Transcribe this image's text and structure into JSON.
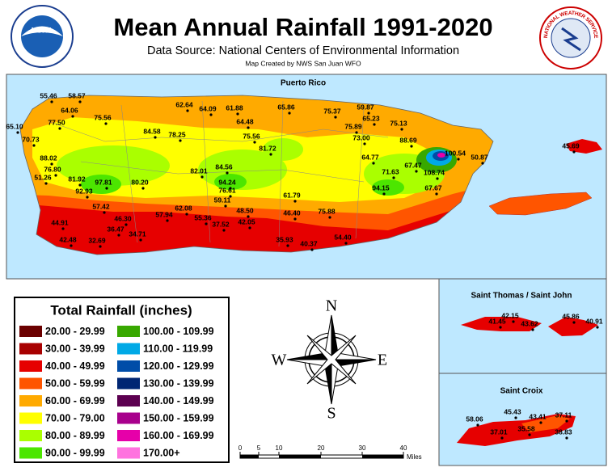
{
  "header": {
    "title": "Mean Annual Rainfall 1991-2020",
    "subtitle": "Data Source: National Centers of Environmental Information",
    "credit": "Map Created by NWS San Juan WFO"
  },
  "logos": {
    "left": "NOAA",
    "right": "NATIONAL WEATHER SERVICE"
  },
  "map": {
    "labels": {
      "puerto_rico": "Puerto Rico",
      "st_thomas": "Saint Thomas / Saint John",
      "st_croix": "Saint Croix"
    },
    "stations": {
      "puerto_rico": [
        "55.46",
        "58.57",
        "64.06",
        "75.56",
        "62.64",
        "64.09",
        "61.88",
        "65.86",
        "75.37",
        "59.87",
        "65.23",
        "65.10",
        "77.50",
        "64.48",
        "75.56",
        "84.58",
        "78.25",
        "75.89",
        "75.13",
        "73.00",
        "88.69",
        "70.73",
        "81.72",
        "88.02",
        "76.80",
        "82.01",
        "84.56",
        "64.77",
        "67.47",
        "100.54",
        "50.87",
        "71.63",
        "108.74",
        "51.26",
        "81.92",
        "97.81",
        "80.20",
        "94.24",
        "76.61",
        "92.93",
        "94.15",
        "67.67",
        "61.79",
        "59.11",
        "57.42",
        "62.08",
        "57.94",
        "48.50",
        "46.40",
        "75.88",
        "55.36",
        "46.30",
        "44.91",
        "37.52",
        "42.05",
        "36.47",
        "34.71",
        "42.48",
        "32.69",
        "35.93",
        "40.37",
        "54.40",
        "45.69"
      ],
      "st_thomas": [
        "41.45",
        "42.15",
        "43.62",
        "45.86",
        "40.91"
      ],
      "st_croix": [
        "45.43",
        "43.41",
        "37.11",
        "58.06",
        "37.01",
        "35.58",
        "38.83"
      ]
    }
  },
  "legend": {
    "title": "Total Rainfall (inches)",
    "items": [
      {
        "label": "20.00 - 29.99",
        "color": "#6b0000"
      },
      {
        "label": "30.00 - 39.99",
        "color": "#a80000"
      },
      {
        "label": "40.00 - 49.99",
        "color": "#e60000"
      },
      {
        "label": "50.00 - 59.99",
        "color": "#ff5500"
      },
      {
        "label": "60.00 - 69.99",
        "color": "#ffaa00"
      },
      {
        "label": "70.00 - 79.00",
        "color": "#ffff00"
      },
      {
        "label": "80.00 - 89.99",
        "color": "#aaff00"
      },
      {
        "label": "90.00 - 99.99",
        "color": "#4ce600"
      },
      {
        "label": "100.00 - 109.99",
        "color": "#38a800"
      },
      {
        "label": "110.00 - 119.99",
        "color": "#00a9e6"
      },
      {
        "label": "120.00 - 129.99",
        "color": "#004da8"
      },
      {
        "label": "130.00 - 139.99",
        "color": "#002673"
      },
      {
        "label": "140.00 - 149.99",
        "color": "#5c0050"
      },
      {
        "label": "150.00 - 159.99",
        "color": "#a8008c"
      },
      {
        "label": "160.00 - 169.99",
        "color": "#e600a9"
      },
      {
        "label": "170.00+",
        "color": "#ff73df"
      }
    ]
  },
  "compass": {
    "n": "N",
    "e": "E",
    "s": "S",
    "w": "W"
  },
  "scale": {
    "ticks": [
      "0",
      "5",
      "10",
      "20",
      "30",
      "40"
    ],
    "unit": "Miles"
  }
}
